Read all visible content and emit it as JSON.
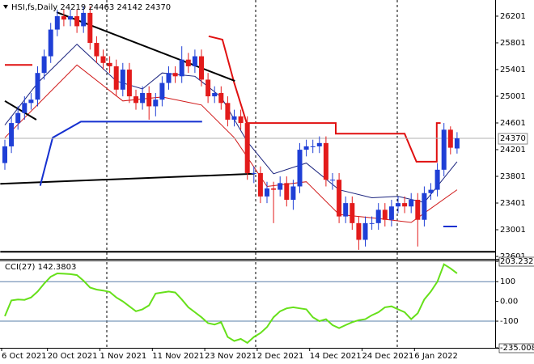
{
  "chart_data": [
    {
      "type": "candlestick",
      "title": "HSI,fs,Daily  24219 24463 24142 24370",
      "categories": [
        "6 Oct 2021",
        null,
        null,
        null,
        null,
        null,
        null,
        "20 Oct 2021",
        null,
        null,
        null,
        null,
        null,
        null,
        null,
        "1 Nov 2021",
        null,
        null,
        null,
        null,
        null,
        null,
        null,
        "11 Nov 2021",
        null,
        null,
        null,
        null,
        null,
        null,
        null,
        "23 Nov 2021",
        null,
        null,
        null,
        null,
        null,
        null,
        null,
        "2 Dec 2021",
        null,
        null,
        null,
        null,
        null,
        null,
        null,
        "14 Dec 2021",
        null,
        null,
        null,
        null,
        null,
        null,
        null,
        "24 Dec 2021",
        null,
        null,
        null,
        null,
        null,
        null,
        null,
        "6 Jan 2022",
        null,
        null,
        null,
        null,
        null,
        null
      ],
      "open": [
        24000,
        24250,
        24600,
        24750,
        24900,
        24950,
        25350,
        25600,
        26000,
        26200,
        26150,
        26200,
        26050,
        26250,
        25800,
        25600,
        25500,
        25450,
        25100,
        25400,
        25000,
        24900,
        25050,
        24850,
        24950,
        25200,
        25350,
        25300,
        25550,
        25450,
        25600,
        25250,
        25000,
        25050,
        24900,
        24650,
        24700,
        24600,
        23850,
        23850,
        23500,
        23620,
        23600,
        23700,
        23450,
        23650,
        24200,
        24250,
        24250,
        24300,
        23750,
        23750,
        23200,
        23400,
        23100,
        22850,
        23100,
        23100,
        23300,
        23150,
        23350,
        23400,
        23350,
        23450,
        23150,
        23550,
        23600,
        23900,
        24500,
        24219
      ],
      "high": [
        24350,
        24700,
        24850,
        25000,
        25050,
        25450,
        25700,
        26100,
        26300,
        26300,
        26300,
        26300,
        26350,
        26350,
        25900,
        25700,
        25600,
        25550,
        25500,
        25500,
        25100,
        25150,
        25150,
        25050,
        25300,
        25450,
        25450,
        25750,
        25650,
        25700,
        25700,
        25350,
        25150,
        25150,
        25000,
        24800,
        24800,
        24700,
        23950,
        23950,
        23720,
        23720,
        23800,
        23800,
        23750,
        24300,
        24350,
        24350,
        24400,
        24400,
        23850,
        23850,
        23500,
        23500,
        23200,
        23200,
        23200,
        23400,
        23400,
        23450,
        23500,
        23500,
        23550,
        23550,
        23650,
        23700,
        24000,
        24600,
        24550,
        24463
      ],
      "low": [
        23900,
        24150,
        24500,
        24650,
        24800,
        24850,
        25250,
        25500,
        25900,
        26050,
        26050,
        25950,
        25950,
        25700,
        25500,
        25400,
        25350,
        25000,
        25000,
        24900,
        24800,
        24800,
        24650,
        24700,
        24850,
        25100,
        25200,
        25200,
        25350,
        25350,
        25150,
        24900,
        24900,
        24800,
        24550,
        24550,
        24500,
        23750,
        23700,
        23400,
        23400,
        23100,
        23500,
        23350,
        23300,
        23550,
        24100,
        24150,
        24150,
        23650,
        23600,
        23100,
        23100,
        23000,
        22700,
        22750,
        23000,
        23000,
        23050,
        23050,
        23250,
        23250,
        23250,
        22750,
        23050,
        23450,
        23500,
        23800,
        24130,
        24142
      ],
      "close": [
        24250,
        24600,
        24750,
        24900,
        24950,
        25350,
        25600,
        26000,
        26200,
        26150,
        26200,
        26050,
        26250,
        25800,
        25600,
        25500,
        25450,
        25100,
        25400,
        25000,
        24900,
        25050,
        24850,
        24950,
        25200,
        25350,
        25300,
        25550,
        25450,
        25600,
        25250,
        25000,
        25050,
        24900,
        24650,
        24700,
        24600,
        23850,
        23850,
        23500,
        23620,
        23600,
        23700,
        23450,
        23650,
        24200,
        24250,
        24250,
        24300,
        23750,
        23750,
        23200,
        23400,
        23100,
        22850,
        23100,
        23100,
        23300,
        23150,
        23350,
        23400,
        23350,
        23450,
        23150,
        23550,
        23600,
        23900,
        24500,
        24230,
        24370
      ],
      "up_color": "#1f3fd6",
      "down_color": "#e31b1b",
      "overlays": [
        {
          "color": "#1a237e",
          "width": 1,
          "x": [
            0,
            5,
            11,
            17,
            21,
            24,
            29,
            33,
            37,
            41,
            46,
            51,
            56,
            60,
            64,
            69
          ],
          "values": [
            24570,
            25200,
            25780,
            25230,
            25110,
            25350,
            25300,
            24990,
            24320,
            23840,
            24000,
            23600,
            23480,
            23500,
            23410,
            24020
          ]
        },
        {
          "color": "#d01818",
          "width": 1,
          "x": [
            0,
            11,
            18,
            24,
            30,
            35,
            40,
            46,
            51,
            57,
            62,
            69
          ],
          "values": [
            24380,
            25470,
            24930,
            24990,
            24870,
            24380,
            23650,
            23720,
            23230,
            23170,
            23110,
            23600
          ]
        },
        {
          "color": "#e01010",
          "width": 2,
          "x": [
            0,
            4.2,
            4.3,
            31.1,
            33.2,
            35,
            36.9,
            50.5,
            50.5,
            61,
            62.8,
            65.9,
            65.9,
            66.5
          ],
          "values": [
            25470,
            25470,
            null,
            25900,
            25850,
            25200,
            24600,
            24600,
            24440,
            24440,
            24020,
            24020,
            24600,
            24600
          ]
        },
        {
          "color": "#000000",
          "width": 2,
          "x": [
            7.9,
            35.1
          ],
          "values": [
            26260,
            25230
          ]
        },
        {
          "color": "#000000",
          "width": 2,
          "x": [
            0,
            4.8
          ],
          "values": [
            24930,
            24650
          ]
        },
        {
          "color": "#000000",
          "width": 2,
          "x": [
            -0.7,
            38.1
          ],
          "values": [
            23690,
            23840
          ]
        },
        {
          "color": "#000000",
          "width": 2,
          "x": [
            -0.7,
            75
          ],
          "values": [
            22670,
            22670
          ]
        },
        {
          "color": "#1530d0",
          "width": 2,
          "x": [
            5.4,
            7.3,
            11.6,
            30.1
          ],
          "values": [
            23660,
            24380,
            24620,
            24620
          ]
        },
        {
          "color": "#1530d0",
          "width": 2,
          "x": [
            66.9,
            69
          ],
          "values": [
            23050,
            23050
          ]
        }
      ],
      "last_price": 24370,
      "ylim": [
        22565,
        26443
      ],
      "yticks": [
        26201,
        25801,
        25401,
        25001,
        24601,
        24201,
        23801,
        23401,
        23001,
        22601
      ]
    },
    {
      "type": "line",
      "title": "CCI(27) 142.3803",
      "color": "#66e01a",
      "values": [
        -75,
        5,
        10,
        8,
        20,
        50,
        90,
        125,
        142,
        140,
        138,
        133,
        105,
        70,
        60,
        55,
        48,
        20,
        0,
        -25,
        -50,
        -40,
        -20,
        40,
        45,
        50,
        45,
        10,
        -30,
        -55,
        -80,
        -110,
        -117,
        -105,
        -180,
        -200,
        -190,
        -210,
        -180,
        -160,
        -130,
        -80,
        -50,
        -35,
        -30,
        -35,
        -40,
        -80,
        -100,
        -90,
        -120,
        -135,
        -120,
        -105,
        -95,
        -90,
        -70,
        -55,
        -30,
        -25,
        -40,
        -55,
        -90,
        -60,
        10,
        50,
        100,
        188,
        167,
        142.3803
      ],
      "levels": [
        100,
        -100
      ],
      "ylim": [
        -235.008,
        203.232
      ],
      "yticks": [
        203.232,
        100,
        {
          "value": 0,
          "label": "0.00"
        },
        -100,
        -235.008
      ]
    }
  ]
}
